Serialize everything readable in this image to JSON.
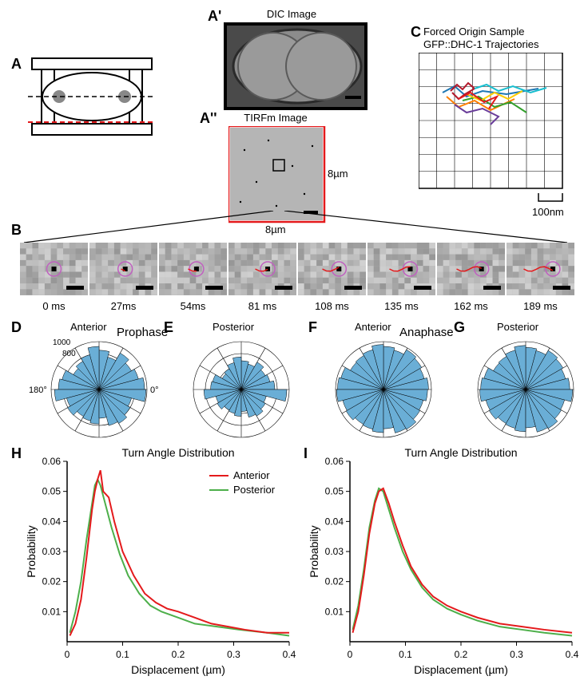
{
  "labels": {
    "A": "A",
    "Ap": "A'",
    "App": "A''",
    "B": "B",
    "C": "C",
    "D": "D",
    "E": "E",
    "F": "F",
    "G": "G",
    "H": "H",
    "I": "I"
  },
  "titles": {
    "dic": "DIC Image",
    "tirfm": "TIRFm Image",
    "trajectories_line1": "Forced Origin Sample",
    "trajectories_line2": "GFP::DHC-1 Trajectories",
    "prophase": "Prophase",
    "anaphase": "Anaphase",
    "anterior": "Anterior",
    "posterior": "Posterior",
    "turn_angle": "Turn Angle Distribution"
  },
  "tirfm_dim": "8µm",
  "trajectory_scale": "100nm",
  "timepoints": [
    "0 ms",
    "27ms",
    "54ms",
    "81 ms",
    "108 ms",
    "135 ms",
    "162 ms",
    "189 ms"
  ],
  "rose": {
    "fill": "#6aaed6",
    "stroke": "#000000",
    "radial_labels": [
      "1000",
      "800"
    ],
    "angle_labels": [
      "180°",
      "0°"
    ],
    "bins": 24,
    "D_vals": [
      0.95,
      0.85,
      0.78,
      0.88,
      0.7,
      0.82,
      0.9,
      0.75,
      0.68,
      0.62,
      0.8,
      0.85,
      0.93,
      0.7,
      0.76,
      0.65,
      0.68,
      0.72,
      0.6,
      0.78,
      0.82,
      0.75,
      0.7,
      0.98
    ],
    "E_vals": [
      0.7,
      0.62,
      0.58,
      0.66,
      0.55,
      0.6,
      0.68,
      0.58,
      0.5,
      0.46,
      0.62,
      0.64,
      0.78,
      0.55,
      0.58,
      0.5,
      0.52,
      0.56,
      0.46,
      0.6,
      0.64,
      0.58,
      0.54,
      0.95
    ],
    "F_vals": [
      0.94,
      0.88,
      0.92,
      0.96,
      0.85,
      0.9,
      0.94,
      0.86,
      0.82,
      0.8,
      0.92,
      0.96,
      0.98,
      0.88,
      0.9,
      0.84,
      0.86,
      0.9,
      0.82,
      0.94,
      0.96,
      0.88,
      0.86,
      0.92
    ],
    "G_vals": [
      0.92,
      0.86,
      0.9,
      0.94,
      0.84,
      0.88,
      0.92,
      0.85,
      0.8,
      0.78,
      0.9,
      0.94,
      0.96,
      0.86,
      0.88,
      0.82,
      0.84,
      0.88,
      0.8,
      0.92,
      0.94,
      0.86,
      0.84,
      0.98
    ]
  },
  "line_charts": {
    "xlabel": "Displacement (µm)",
    "ylabel": "Probability",
    "xlim": [
      0,
      0.4
    ],
    "ylim": [
      0,
      0.06
    ],
    "yticks": [
      0.01,
      0.02,
      0.03,
      0.04,
      0.05,
      0.06
    ],
    "xticks": [
      0,
      0.1,
      0.2,
      0.3,
      0.4
    ],
    "legend": {
      "anterior": "Anterior",
      "posterior": "Posterior"
    },
    "anterior_color": "#e41a1c",
    "posterior_color": "#4daf4a",
    "H_anterior": [
      [
        0.005,
        0.002
      ],
      [
        0.015,
        0.006
      ],
      [
        0.025,
        0.014
      ],
      [
        0.035,
        0.028
      ],
      [
        0.045,
        0.044
      ],
      [
        0.05,
        0.05
      ],
      [
        0.055,
        0.054
      ],
      [
        0.06,
        0.057
      ],
      [
        0.065,
        0.05
      ],
      [
        0.075,
        0.048
      ],
      [
        0.085,
        0.04
      ],
      [
        0.1,
        0.03
      ],
      [
        0.12,
        0.022
      ],
      [
        0.14,
        0.016
      ],
      [
        0.16,
        0.013
      ],
      [
        0.18,
        0.011
      ],
      [
        0.2,
        0.01
      ],
      [
        0.23,
        0.008
      ],
      [
        0.26,
        0.006
      ],
      [
        0.29,
        0.005
      ],
      [
        0.32,
        0.004
      ],
      [
        0.36,
        0.003
      ],
      [
        0.4,
        0.003
      ]
    ],
    "H_posterior": [
      [
        0.005,
        0.003
      ],
      [
        0.015,
        0.01
      ],
      [
        0.025,
        0.02
      ],
      [
        0.035,
        0.034
      ],
      [
        0.045,
        0.046
      ],
      [
        0.05,
        0.052
      ],
      [
        0.055,
        0.054
      ],
      [
        0.06,
        0.052
      ],
      [
        0.07,
        0.045
      ],
      [
        0.08,
        0.038
      ],
      [
        0.095,
        0.029
      ],
      [
        0.11,
        0.022
      ],
      [
        0.13,
        0.016
      ],
      [
        0.15,
        0.012
      ],
      [
        0.17,
        0.01
      ],
      [
        0.2,
        0.008
      ],
      [
        0.23,
        0.006
      ],
      [
        0.27,
        0.005
      ],
      [
        0.31,
        0.004
      ],
      [
        0.36,
        0.003
      ],
      [
        0.4,
        0.002
      ]
    ],
    "I_anterior": [
      [
        0.005,
        0.003
      ],
      [
        0.015,
        0.01
      ],
      [
        0.025,
        0.022
      ],
      [
        0.035,
        0.036
      ],
      [
        0.045,
        0.046
      ],
      [
        0.052,
        0.05
      ],
      [
        0.06,
        0.051
      ],
      [
        0.07,
        0.046
      ],
      [
        0.08,
        0.04
      ],
      [
        0.095,
        0.032
      ],
      [
        0.11,
        0.025
      ],
      [
        0.13,
        0.019
      ],
      [
        0.15,
        0.015
      ],
      [
        0.175,
        0.012
      ],
      [
        0.2,
        0.01
      ],
      [
        0.23,
        0.008
      ],
      [
        0.27,
        0.006
      ],
      [
        0.31,
        0.005
      ],
      [
        0.35,
        0.004
      ],
      [
        0.4,
        0.003
      ]
    ],
    "I_posterior": [
      [
        0.005,
        0.004
      ],
      [
        0.015,
        0.012
      ],
      [
        0.025,
        0.024
      ],
      [
        0.035,
        0.038
      ],
      [
        0.045,
        0.047
      ],
      [
        0.052,
        0.051
      ],
      [
        0.06,
        0.05
      ],
      [
        0.07,
        0.044
      ],
      [
        0.08,
        0.038
      ],
      [
        0.095,
        0.03
      ],
      [
        0.11,
        0.024
      ],
      [
        0.13,
        0.018
      ],
      [
        0.15,
        0.014
      ],
      [
        0.175,
        0.011
      ],
      [
        0.2,
        0.009
      ],
      [
        0.23,
        0.007
      ],
      [
        0.27,
        0.005
      ],
      [
        0.31,
        0.004
      ],
      [
        0.35,
        0.003
      ],
      [
        0.4,
        0.002
      ]
    ]
  },
  "colors": {
    "red": "#e41a1c",
    "grid": "#000000",
    "track_circle": "#c060c0"
  }
}
